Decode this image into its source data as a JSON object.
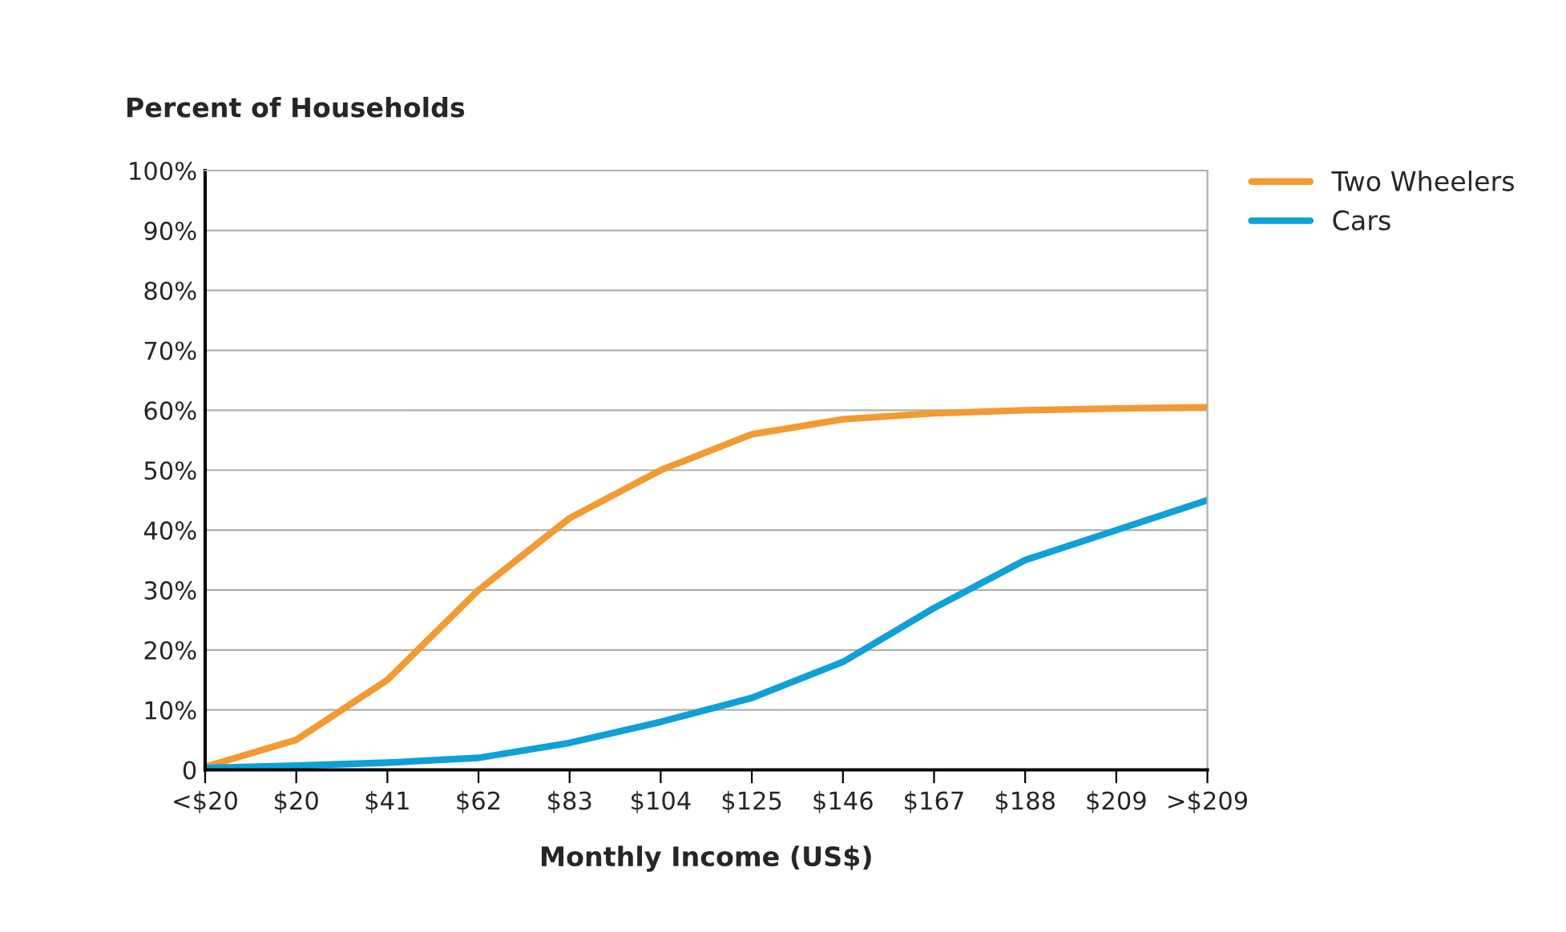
{
  "chart_data": {
    "type": "line",
    "ylabel": "Percent of Households",
    "xlabel": "Monthly Income (US$)",
    "categories": [
      "<$20",
      "$20",
      "$41",
      "$62",
      "$83",
      "$104",
      "$125",
      "$146",
      "$167",
      "$188",
      "$209",
      ">$209"
    ],
    "series": [
      {
        "name": "Two Wheelers",
        "color": "#f39a33",
        "values": [
          0.5,
          5,
          15,
          30,
          42,
          50,
          56,
          58.5,
          59.5,
          60,
          60.3,
          60.5
        ]
      },
      {
        "name": "Cars",
        "color": "#0fa0d8",
        "values": [
          0.3,
          0.7,
          1.2,
          2,
          4.5,
          8,
          12,
          18,
          27,
          35,
          40,
          45
        ]
      }
    ],
    "ylim": [
      0,
      100
    ],
    "yticks": [
      0,
      {
        "value": 10,
        "label": "10%"
      },
      {
        "value": 20,
        "label": "20%"
      },
      {
        "value": 30,
        "label": "30%"
      },
      {
        "value": 40,
        "label": "40%"
      },
      {
        "value": 50,
        "label": "50%"
      },
      {
        "value": 60,
        "label": "60%"
      },
      {
        "value": 70,
        "label": "70%"
      },
      {
        "value": 80,
        "label": "80%"
      },
      {
        "value": 90,
        "label": "90%"
      },
      {
        "value": 100,
        "label": "100%"
      }
    ],
    "grid": "y",
    "legend": "top right",
    "marker": "none",
    "line_style": "solid"
  }
}
